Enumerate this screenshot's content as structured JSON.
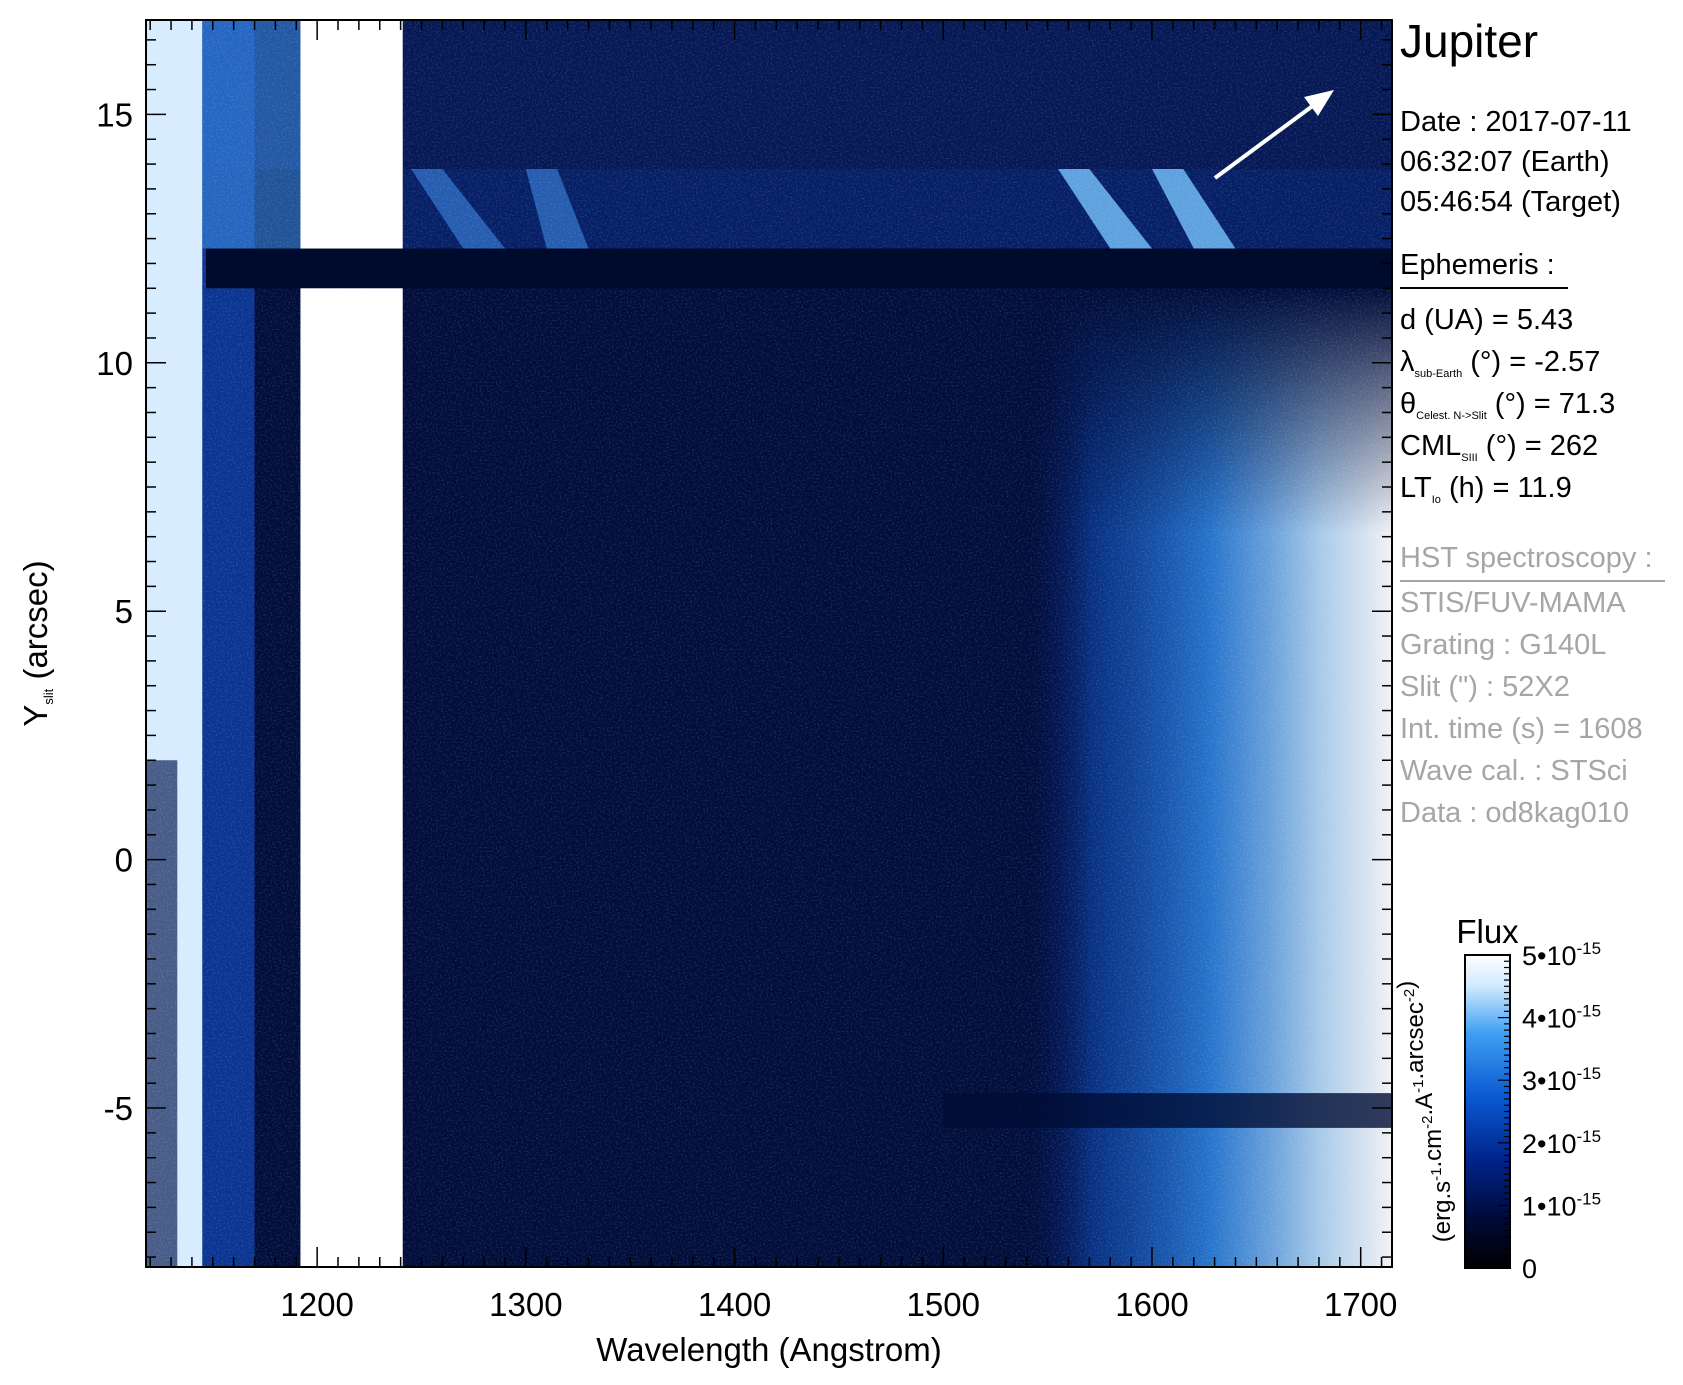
{
  "chart_data": {
    "type": "heatmap",
    "title": "Jupiter",
    "xlabel": "Wavelength (Angstrom)",
    "ylabel": "Y",
    "ylabel_sub": "slit",
    "ylabel_unit": " (arcsec)",
    "xlim": [
      1118,
      1715
    ],
    "ylim": [
      -8.2,
      16.9
    ],
    "x_ticks": [
      1200,
      1300,
      1400,
      1500,
      1600,
      1700
    ],
    "x_tick_labels": [
      "1200",
      "1300",
      "1400",
      "1500",
      "1600",
      "1700"
    ],
    "y_ticks": [
      15,
      10,
      5,
      0,
      -5
    ],
    "y_tick_labels": [
      "15",
      "10",
      "5",
      "0",
      "-5"
    ],
    "colorbar": {
      "label": "Flux",
      "unit_label": "(erg.s-1.cm-2.A-1.arcsec-2)",
      "range": [
        0,
        5e-15
      ],
      "ticks": [
        0,
        1e-15,
        2e-15,
        3e-15,
        4e-15,
        5e-15
      ],
      "tick_labels": [
        "0",
        "1•10-15",
        "2•10-15",
        "3•10-15",
        "4•10-15",
        "5•10-15"
      ],
      "colors": [
        "#000000",
        "#000a3a",
        "#00248c",
        "#0b5ad2",
        "#3f9ff2",
        "#cfe9ff",
        "#ffffff"
      ]
    },
    "features": {
      "saturated_column_x": [
        1192,
        1241
      ],
      "dark_row_y": [
        11.5,
        12.3
      ],
      "bright_top_band_y": [
        12.3,
        13.9
      ],
      "dark_lower_row_y": [
        -5.4,
        -4.7
      ],
      "lyman_edge_x": [
        1118,
        1145
      ],
      "continuum_rise_start_x": 1540
    }
  },
  "info": {
    "title": "Jupiter",
    "date": "Date : 2017-07-11",
    "time_earth": "06:32:07 (Earth)",
    "time_target": "05:46:54 (Target)",
    "ephemeris_header": "Ephemeris :",
    "ephemeris": [
      {
        "name": "d (UA)",
        "sub": "",
        "unit": "",
        "value": "= 5.43"
      },
      {
        "name": "λ",
        "sub": "sub-Earth",
        "unit": " (°)",
        "value": "= -2.57"
      },
      {
        "name": "θ",
        "sub": "Celest. N->Slit",
        "unit": " (°)",
        "value": "= 71.3"
      },
      {
        "name": "CML",
        "sub": "SIII",
        "unit": " (°)",
        "value": "= 262"
      },
      {
        "name": "LT",
        "sub": "Io",
        "unit": " (h)",
        "value": "= 11.9"
      }
    ],
    "hst_header": "HST spectroscopy :",
    "hst": [
      "STIS/FUV-MAMA",
      "Grating : G140L",
      "Slit (\") : 52X2",
      "Int. time (s) = 1608",
      "Wave cal. : STSci",
      "Data : od8kag010"
    ],
    "colors": {
      "text": "#000000",
      "gray": "#a6a6a6"
    }
  }
}
